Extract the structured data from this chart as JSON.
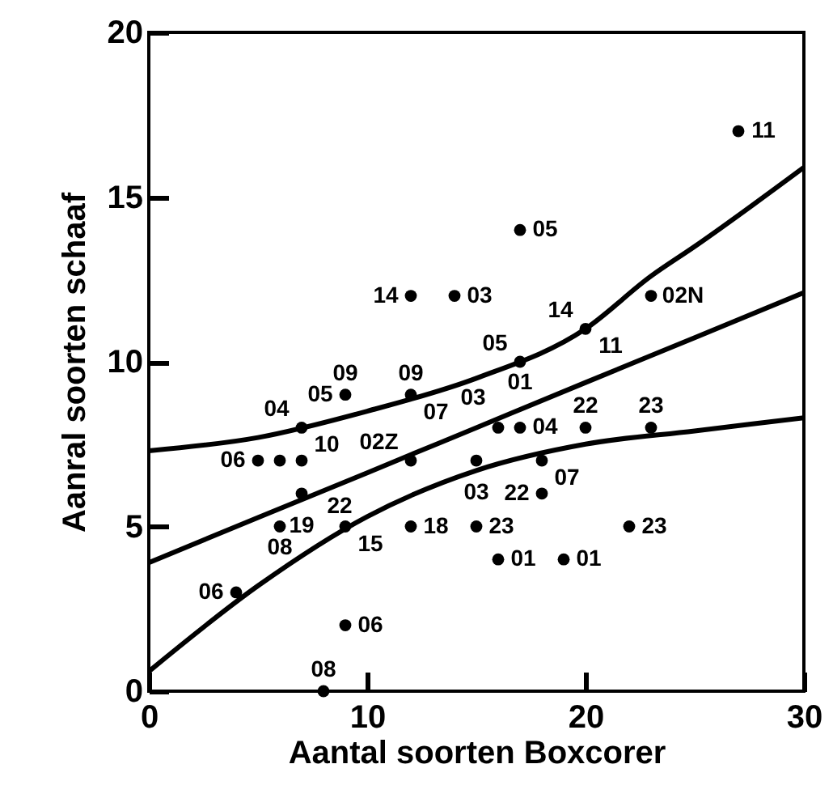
{
  "chart_data": {
    "type": "scatter",
    "xlabel": "Aantal soorten Boxcorer",
    "ylabel": "Aanral soorten schaaf",
    "xlim": [
      0,
      30
    ],
    "ylim": [
      0,
      20
    ],
    "xticks": [
      0,
      10,
      20,
      30
    ],
    "yticks": [
      0,
      5,
      10,
      15,
      20
    ],
    "grid": false,
    "series": [
      {
        "color": "#000000",
        "marker": "circle",
        "x": [
          27,
          17,
          12,
          14,
          23,
          20,
          17,
          16,
          17,
          20,
          23,
          15,
          18,
          18,
          15,
          22,
          16,
          19,
          9,
          12,
          7,
          5,
          6,
          7,
          12,
          7,
          6,
          9,
          12,
          4,
          9,
          8
        ],
        "values": [
          17,
          14,
          12,
          12,
          12,
          11,
          10,
          8,
          8,
          8,
          8,
          7,
          7,
          6,
          5,
          5,
          4,
          4,
          9,
          9,
          8,
          7,
          7,
          7,
          7,
          6,
          5,
          5,
          5,
          3,
          2,
          0
        ]
      },
      {
        "type": "line",
        "color": "#000000",
        "x": [
          0,
          5,
          10,
          15,
          20,
          25,
          30
        ],
        "values": [
          3.9,
          5.27,
          6.63,
          8.0,
          9.37,
          10.73,
          12.1
        ]
      },
      {
        "type": "line",
        "color": "#000000",
        "x": [
          0,
          5,
          10,
          15,
          20,
          23,
          25,
          30
        ],
        "values": [
          7.3,
          7.7,
          8.5,
          9.5,
          11.0,
          12.6,
          13.5,
          15.9
        ]
      },
      {
        "type": "line",
        "color": "#000000",
        "x": [
          0,
          5,
          10,
          15,
          20,
          25,
          30
        ],
        "values": [
          0.6,
          3.2,
          5.3,
          6.7,
          7.5,
          7.9,
          8.3
        ]
      }
    ],
    "annotations": [
      {
        "text": "11",
        "x": 27,
        "y": 17
      },
      {
        "text": "05",
        "x": 17,
        "y": 14
      },
      {
        "text": "14",
        "x": 12,
        "y": 12
      },
      {
        "text": "03",
        "x": 14,
        "y": 12
      },
      {
        "text": "02N",
        "x": 23,
        "y": 12
      },
      {
        "text": "14",
        "x": 20,
        "y": 11
      },
      {
        "text": "11",
        "x": 20,
        "y": 11
      },
      {
        "text": "01",
        "x": 17,
        "y": 10
      },
      {
        "text": "05",
        "x": 17,
        "y": 10
      },
      {
        "text": "03",
        "x": 16,
        "y": 8
      },
      {
        "text": "04",
        "x": 17,
        "y": 8
      },
      {
        "text": "22",
        "x": 20,
        "y": 8
      },
      {
        "text": "23",
        "x": 23,
        "y": 8
      },
      {
        "text": "03",
        "x": 15,
        "y": 7
      },
      {
        "text": "07",
        "x": 18,
        "y": 7
      },
      {
        "text": "22",
        "x": 18,
        "y": 6
      },
      {
        "text": "23",
        "x": 15,
        "y": 5
      },
      {
        "text": "23",
        "x": 22,
        "y": 5
      },
      {
        "text": "01",
        "x": 16,
        "y": 4
      },
      {
        "text": "01",
        "x": 19,
        "y": 4
      },
      {
        "text": "05",
        "x": 9,
        "y": 9
      },
      {
        "text": "09",
        "x": 9,
        "y": 9
      },
      {
        "text": "09",
        "x": 12,
        "y": 9
      },
      {
        "text": "07",
        "x": 12,
        "y": 9
      },
      {
        "text": "04",
        "x": 7,
        "y": 8
      },
      {
        "text": "10",
        "x": 7,
        "y": 8
      },
      {
        "text": "06",
        "x": 5,
        "y": 7
      },
      {
        "text": "02Z",
        "x": 12,
        "y": 7
      },
      {
        "text": "19",
        "x": 7,
        "y": 6
      },
      {
        "text": "22",
        "x": 7,
        "y": 6
      },
      {
        "text": "08",
        "x": 6,
        "y": 5
      },
      {
        "text": "15",
        "x": 9,
        "y": 5
      },
      {
        "text": "18",
        "x": 12,
        "y": 5
      },
      {
        "text": "06",
        "x": 4,
        "y": 3
      },
      {
        "text": "06",
        "x": 9,
        "y": 2
      },
      {
        "text": "08",
        "x": 8,
        "y": 0
      }
    ]
  }
}
